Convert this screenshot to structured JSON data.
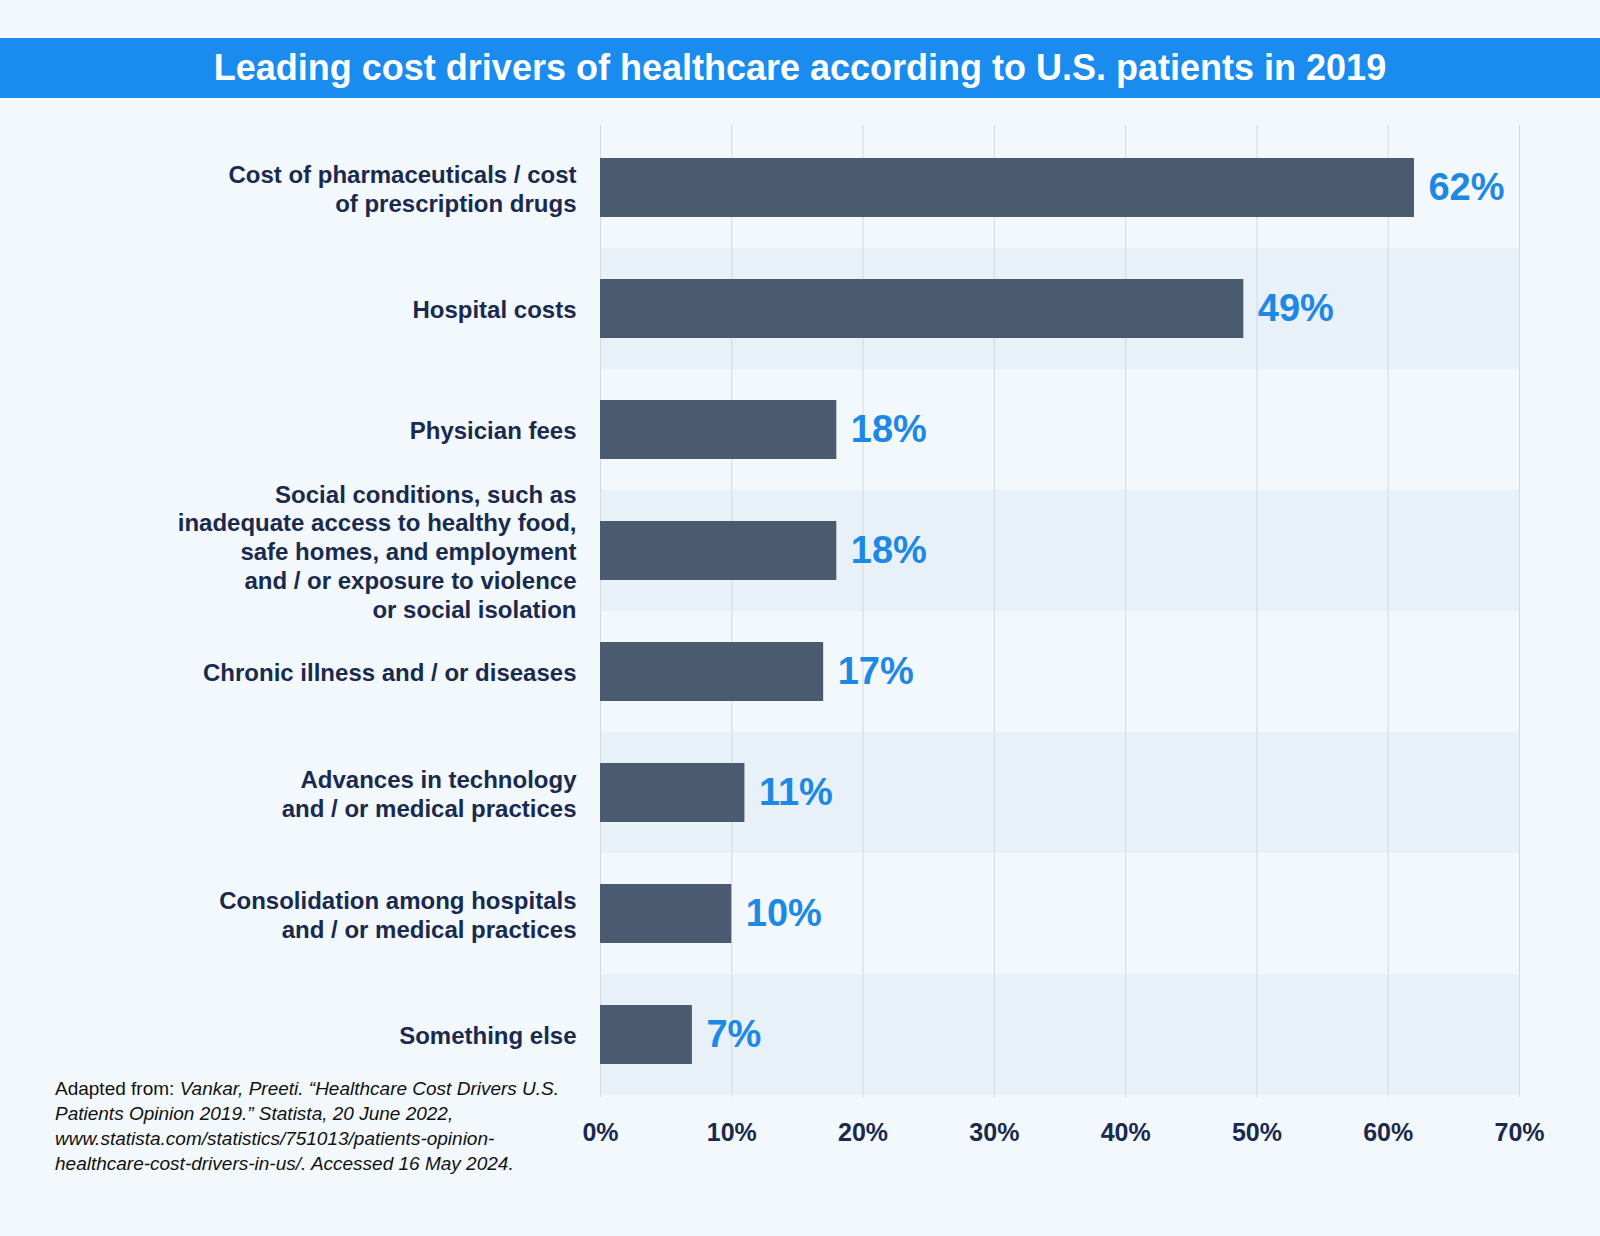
{
  "chart_data": {
    "type": "bar",
    "orientation": "horizontal",
    "title": "Leading cost drivers of healthcare according to U.S. patients in 2019",
    "categories": [
      "Cost of pharmaceuticals / cost\nof prescription drugs",
      "Hospital costs",
      "Physician fees",
      "Social conditions, such as\ninadequate access to healthy food,\nsafe homes, and employment\nand / or exposure to violence\nor social isolation",
      "Chronic illness and / or diseases",
      "Advances in technology\nand / or medical practices",
      "Consolidation among hospitals\nand / or medical practices",
      "Something else"
    ],
    "values": [
      62,
      49,
      18,
      18,
      17,
      11,
      10,
      7
    ],
    "value_labels": [
      "62%",
      "49%",
      "18%",
      "18%",
      "17%",
      "11%",
      "10%",
      "7%"
    ],
    "data_labels": true,
    "color": "#4a5b70",
    "xlim": [
      0,
      70
    ],
    "xticks": [
      {
        "value": 0,
        "label": "0%"
      },
      {
        "value": 10,
        "label": "10%"
      },
      {
        "value": 20,
        "label": "20%"
      },
      {
        "value": 30,
        "label": "30%"
      },
      {
        "value": 40,
        "label": "40%"
      },
      {
        "value": 50,
        "label": "50%"
      },
      {
        "value": 60,
        "label": "60%"
      },
      {
        "value": 70,
        "label": "70%"
      }
    ],
    "grid": true,
    "source": {
      "lead": "Adapted from:",
      "text": "Vankar, Preeti. “Healthcare Cost Drivers U.S. Patients Opinion 2019.” Statista, 20 June 2022, www.statista.com/statistics/751013/patients-opinion-healthcare-cost-drivers-in-us/. Accessed 16 May 2024."
    }
  }
}
